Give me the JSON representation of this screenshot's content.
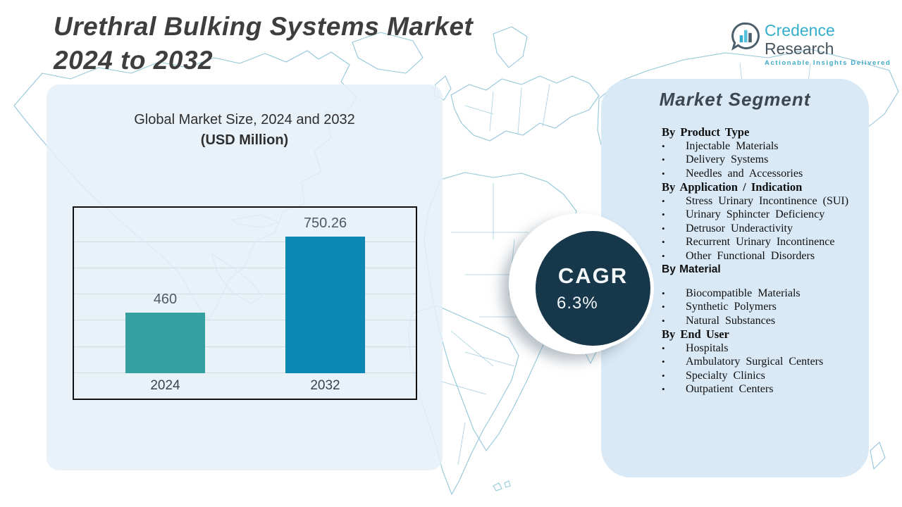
{
  "header": {
    "title_line1": "Urethral Bulking Systems Market",
    "title_line2": "2024 to 2032"
  },
  "logo": {
    "brand_primary": "Credence",
    "brand_secondary": " Research",
    "tagline": "Actionable Insights Delivered"
  },
  "market_size_panel": {
    "title_line1": "Global Market Size, 2024 and 2032",
    "title_line2": "(USD Million)"
  },
  "chart_data": {
    "type": "bar",
    "title": "Global Market Size, 2024 and 2032 (USD Million)",
    "categories": [
      "2024",
      "2032"
    ],
    "values": [
      460,
      750.26
    ],
    "value_labels": [
      "460",
      "750.26"
    ],
    "bar_colors": [
      "#34a1a0",
      "#0b86b5"
    ],
    "xlabel": "",
    "ylabel": "",
    "ylim": [
      230,
      860
    ],
    "gridline_step": 100,
    "gridline_count": 6,
    "grid": true,
    "legend": false
  },
  "cagr_badge": {
    "label": "CAGR",
    "value": "6.3%"
  },
  "market_segment_panel": {
    "title": "Market Segment",
    "groups": [
      {
        "heading": "By Product Type",
        "items": [
          "Injectable Materials",
          "Delivery Systems",
          "Needles and Accessories"
        ]
      },
      {
        "heading": "By Application / Indication",
        "items": [
          "Stress Urinary Incontinence (SUI)",
          "Urinary Sphincter Deficiency",
          "Detrusor Underactivity",
          "Recurrent Urinary Incontinence",
          "Other Functional Disorders"
        ]
      },
      {
        "heading": "By Material",
        "heading_style": "sans",
        "gap_after_heading": true,
        "items": [
          "Biocompatible Materials",
          "Synthetic Polymers",
          "Natural Substances"
        ]
      },
      {
        "heading": "By End User",
        "items": [
          "Hospitals",
          "Ambulatory Surgical Centers",
          "Specialty Clinics",
          "Outpatient Centers"
        ]
      }
    ]
  },
  "colors": {
    "bar_2024": "#34a1a0",
    "bar_2032": "#0b86b5",
    "cagr_circle": "#16384a",
    "left_panel_bg": "#e7f0f8",
    "right_panel_bg": "#d9e9f5",
    "map_stroke": "#93c7d9",
    "title_text": "#3e3e3e",
    "logo_teal": "#35aecb",
    "logo_slate": "#46555f"
  }
}
